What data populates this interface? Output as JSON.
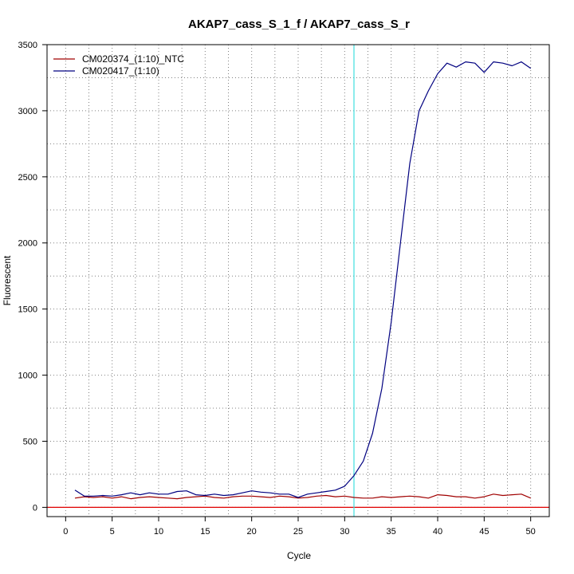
{
  "chart_data": {
    "type": "line",
    "title": "AKAP7_cass_S_1_f / AKAP7_cass_S_r",
    "xlabel": "Cycle",
    "ylabel": "Fluorescent",
    "xlim": [
      -2,
      52
    ],
    "ylim": [
      -70,
      3500
    ],
    "x_ticks": [
      0,
      5,
      10,
      15,
      20,
      25,
      30,
      35,
      40,
      45,
      50
    ],
    "y_ticks": [
      0,
      500,
      1000,
      1500,
      2000,
      2500,
      3000,
      3500
    ],
    "x_tick_labels": [
      "0",
      "5",
      "10",
      "15",
      "20",
      "25",
      "30",
      "35",
      "40",
      "45",
      "50"
    ],
    "y_tick_labels": [
      "0",
      "500",
      "1000",
      "1500",
      "2000",
      "2500",
      "3000",
      "3500"
    ],
    "grid": true,
    "legend_position": "top-left",
    "threshold": {
      "value": 0,
      "color": "#e00000"
    },
    "cycle_marker": {
      "value": 31,
      "color": "#40e0e0"
    },
    "series": [
      {
        "name": "CM020374_(1:10)_NTC",
        "color": "#a00000",
        "x": [
          1,
          2,
          3,
          4,
          5,
          6,
          7,
          8,
          9,
          10,
          11,
          12,
          13,
          14,
          15,
          16,
          17,
          18,
          19,
          20,
          21,
          22,
          23,
          24,
          25,
          26,
          27,
          28,
          29,
          30,
          31,
          32,
          33,
          34,
          35,
          36,
          37,
          38,
          39,
          40,
          41,
          42,
          43,
          44,
          45,
          46,
          47,
          48,
          49,
          50
        ],
        "y": [
          70,
          80,
          75,
          80,
          70,
          80,
          65,
          75,
          80,
          75,
          70,
          65,
          75,
          80,
          85,
          75,
          70,
          80,
          85,
          85,
          80,
          75,
          85,
          80,
          70,
          75,
          85,
          90,
          80,
          85,
          75,
          70,
          70,
          80,
          75,
          80,
          85,
          80,
          70,
          95,
          90,
          80,
          80,
          70,
          80,
          100,
          90,
          95,
          100,
          70
        ]
      },
      {
        "name": "CM020417_(1:10)",
        "color": "#000080",
        "x": [
          1,
          2,
          3,
          4,
          5,
          6,
          7,
          8,
          9,
          10,
          11,
          12,
          13,
          14,
          15,
          16,
          17,
          18,
          19,
          20,
          21,
          22,
          23,
          24,
          25,
          26,
          27,
          28,
          29,
          30,
          31,
          32,
          33,
          34,
          35,
          36,
          37,
          38,
          39,
          40,
          41,
          42,
          43,
          44,
          45,
          46,
          47,
          48,
          49,
          50
        ],
        "y": [
          130,
          85,
          85,
          90,
          85,
          95,
          110,
          95,
          110,
          100,
          100,
          120,
          125,
          95,
          90,
          100,
          90,
          95,
          110,
          125,
          115,
          110,
          100,
          100,
          75,
          100,
          110,
          120,
          130,
          160,
          240,
          350,
          560,
          900,
          1400,
          2000,
          2600,
          3000,
          3150,
          3280,
          3360,
          3330,
          3370,
          3360,
          3290,
          3370,
          3360,
          3340,
          3370,
          3320
        ]
      }
    ]
  }
}
